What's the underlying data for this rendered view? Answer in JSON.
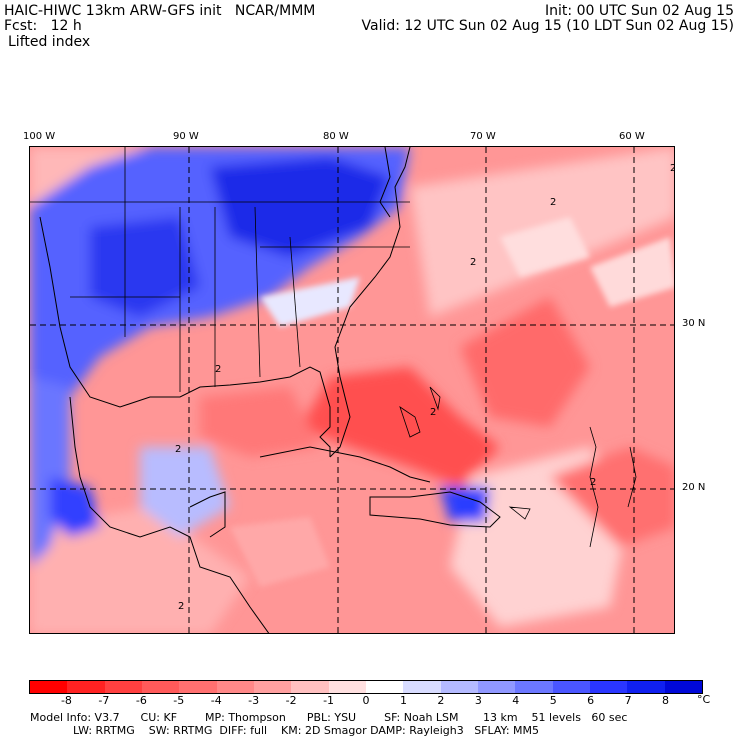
{
  "header": {
    "line1_left": "HAIC-HIWC 13km ARW-GFS init   NCAR/MMM",
    "line2_left": "Fcst:   12 h",
    "line3_left": "Lifted index",
    "line1_right": "Init: 00 UTC Sun 02 Aug 15",
    "line2_right": "Valid: 12 UTC Sun 02 Aug 15 (10 LDT Sun 02 Aug 15)"
  },
  "map": {
    "lon_labels": [
      "100 W",
      "90 W",
      "80 W",
      "70 W",
      "60 W"
    ],
    "lat_labels": [
      "30 N",
      "20 N"
    ],
    "contour_label": "2"
  },
  "colorbar": {
    "labels": [
      "-8",
      "-7",
      "-6",
      "-5",
      "-4",
      "-3",
      "-2",
      "-1",
      "0",
      "1",
      "2",
      "3",
      "4",
      "5",
      "6",
      "7",
      "8"
    ],
    "unit": "°C",
    "colors": [
      "#ff0000",
      "#ff2222",
      "#ff4040",
      "#ff5a5a",
      "#ff7070",
      "#ff8888",
      "#ffa0a0",
      "#ffc0c0",
      "#ffe0e0",
      "#ffffff",
      "#d8dcff",
      "#b4baff",
      "#9098ff",
      "#6c78ff",
      "#4a56ff",
      "#2a36ff",
      "#1020f0",
      "#0008d8"
    ]
  },
  "footer": {
    "line1": "Model Info: V3.7      CU: KF        MP: Thompson      PBL: YSU        SF: Noah LSM       13 km    51 levels   60 sec",
    "line2": "LW: RRTMG    SW: RRTMG  DIFF: full    KM: 2D Smagor DAMP: Rayleigh3   SFLAY: MM5"
  }
}
